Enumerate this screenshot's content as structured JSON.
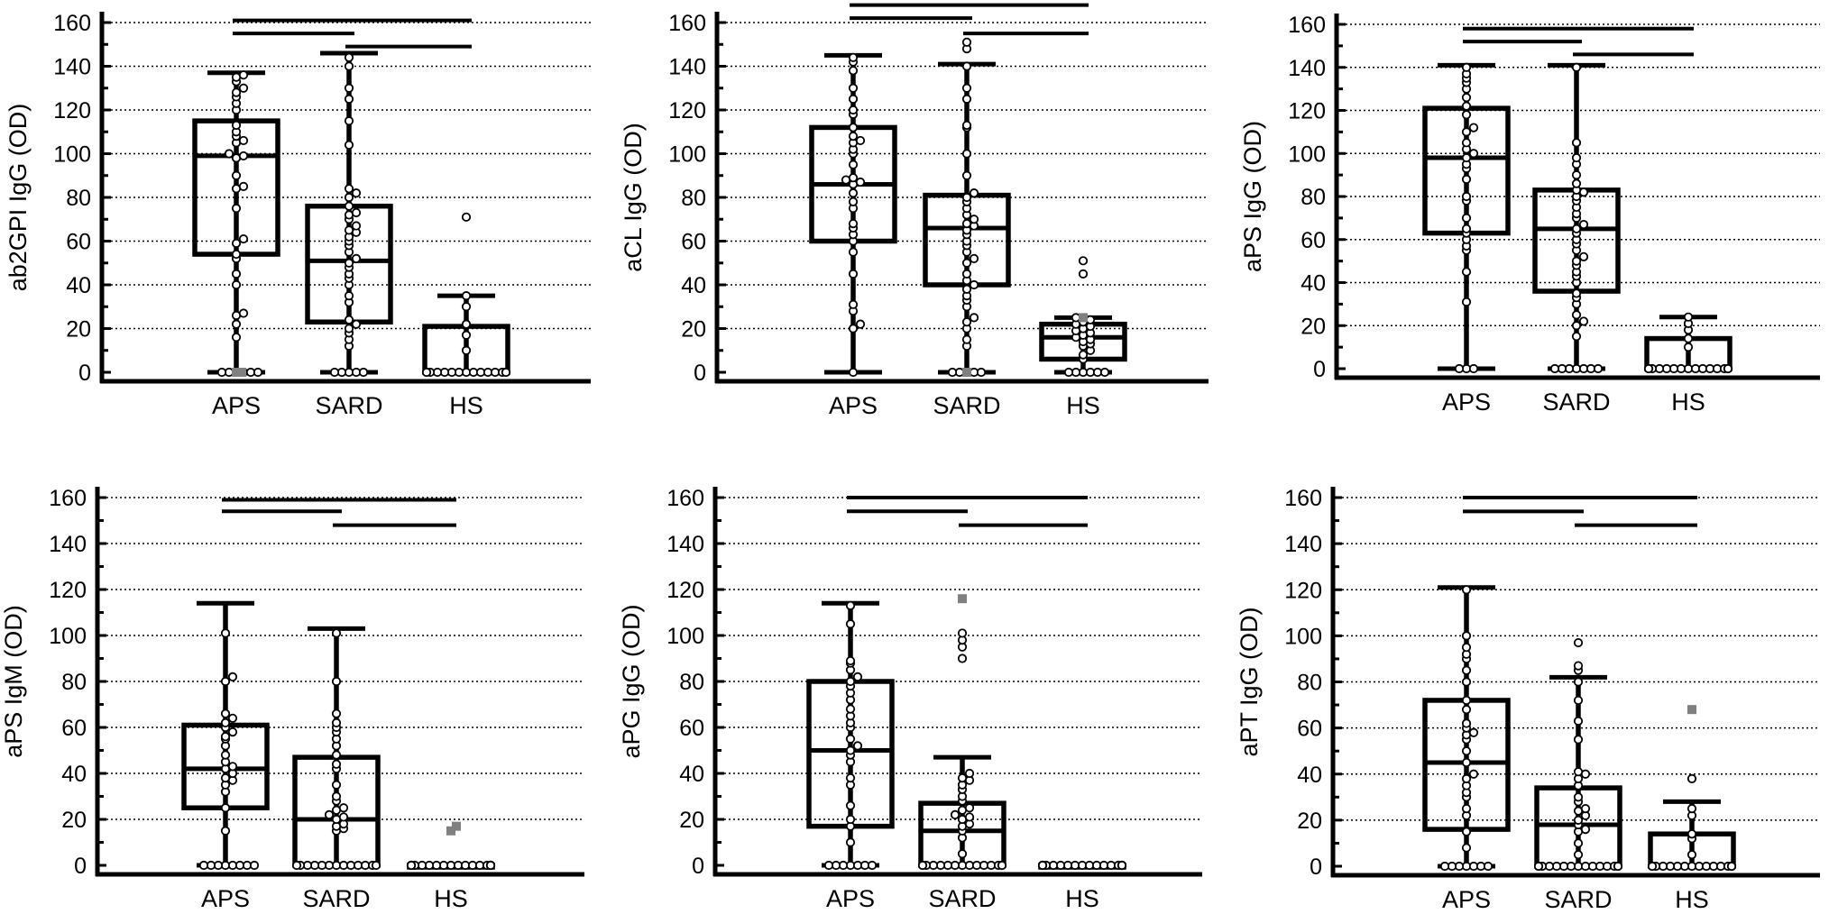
{
  "colors": {
    "ink": "#000000",
    "grid": "#000000",
    "outlier": "#808080",
    "dot_fill": "#ffffff"
  },
  "chart_data": [
    {
      "type": "box",
      "ylabel": "ab2GPI IgG (OD)",
      "categories": [
        "APS",
        "SARD",
        "HS"
      ],
      "ylim": [
        0,
        160
      ],
      "yticks": [
        "0",
        "20",
        "40",
        "60",
        "80",
        "100",
        "120",
        "140",
        "160"
      ],
      "grid": true,
      "boxes": [
        {
          "min": 0,
          "q1": 54,
          "median": 99,
          "q3": 115,
          "max": 137
        },
        {
          "min": 0,
          "q1": 23,
          "median": 51,
          "q3": 76,
          "max": 146
        },
        {
          "min": 0,
          "q1": 0,
          "median": 0,
          "q3": 21,
          "max": 35
        }
      ],
      "points": [
        [
          0,
          0,
          0,
          0,
          0,
          0,
          16,
          22,
          26,
          27,
          40,
          45,
          52,
          54,
          59,
          61,
          75,
          84,
          85,
          90,
          98,
          99,
          100,
          105,
          106,
          108,
          110,
          113,
          120,
          123,
          126,
          128,
          130,
          133,
          135,
          136
        ],
        [
          0,
          0,
          0,
          0,
          0,
          12,
          15,
          18,
          20,
          22,
          24,
          32,
          35,
          40,
          43,
          45,
          48,
          50,
          52,
          55,
          58,
          60,
          62,
          64,
          65,
          67,
          70,
          72,
          73,
          76,
          80,
          82,
          84,
          104,
          115,
          125,
          130,
          140,
          144
        ],
        [
          0,
          0,
          0,
          0,
          0,
          0,
          0,
          0,
          0,
          0,
          0,
          0,
          0,
          0,
          0,
          10,
          17,
          22,
          30,
          35,
          71
        ]
      ],
      "outliers": [
        [
          0,
          0
        ],
        [],
        []
      ],
      "significance": [
        {
          "from": "APS",
          "to": "HS",
          "y": 161
        },
        {
          "from": "APS",
          "to": "SARD",
          "y": 155
        },
        {
          "from": "SARD",
          "to": "HS",
          "y": 149
        }
      ]
    },
    {
      "type": "box",
      "ylabel": "aCL IgG (OD)",
      "categories": [
        "APS",
        "SARD",
        "HS"
      ],
      "ylim": [
        0,
        160
      ],
      "yticks": [
        "0",
        "20",
        "40",
        "60",
        "80",
        "100",
        "120",
        "140",
        "160"
      ],
      "grid": true,
      "boxes": [
        {
          "min": 0,
          "q1": 60,
          "median": 86,
          "q3": 112,
          "max": 145
        },
        {
          "min": 0,
          "q1": 40,
          "median": 66,
          "q3": 81,
          "max": 141
        },
        {
          "min": 0,
          "q1": 6,
          "median": 16,
          "q3": 22,
          "max": 25
        }
      ],
      "points": [
        [
          0,
          20,
          22,
          28,
          31,
          45,
          55,
          60,
          63,
          66,
          68,
          75,
          78,
          82,
          86,
          87,
          88,
          89,
          95,
          100,
          102,
          105,
          106,
          108,
          112,
          118,
          120,
          125,
          130,
          138,
          142,
          144
        ],
        [
          0,
          0,
          0,
          0,
          0,
          12,
          15,
          20,
          23,
          25,
          30,
          33,
          35,
          38,
          40,
          42,
          45,
          50,
          52,
          55,
          58,
          60,
          63,
          65,
          67,
          68,
          70,
          72,
          75,
          78,
          80,
          82,
          90,
          100,
          112,
          113,
          125,
          130,
          140,
          148,
          151
        ],
        [
          0,
          0,
          0,
          0,
          0,
          0,
          6,
          8,
          10,
          12,
          13,
          14,
          15,
          16,
          17,
          18,
          19,
          20,
          21,
          22,
          23,
          24,
          25,
          45,
          51
        ]
      ],
      "outliers": [
        [],
        [
          0
        ],
        [
          25
        ]
      ],
      "significance": [
        {
          "from": "APS",
          "to": "HS",
          "y": 168
        },
        {
          "from": "APS",
          "to": "SARD",
          "y": 162
        },
        {
          "from": "SARD",
          "to": "HS",
          "y": 155
        }
      ]
    },
    {
      "type": "box",
      "ylabel": "aPS IgG (OD)",
      "categories": [
        "APS",
        "SARD",
        "HS"
      ],
      "ylim": [
        0,
        160
      ],
      "yticks": [
        "0",
        "20",
        "40",
        "60",
        "80",
        "100",
        "120",
        "140",
        "160"
      ],
      "grid": true,
      "boxes": [
        {
          "min": 0,
          "q1": 63,
          "median": 98,
          "q3": 121,
          "max": 141
        },
        {
          "min": 0,
          "q1": 36,
          "median": 65,
          "q3": 83,
          "max": 141
        },
        {
          "min": 0,
          "q1": 0,
          "median": 0,
          "q3": 14,
          "max": 24
        }
      ],
      "points": [
        [
          0,
          0,
          0,
          31,
          45,
          55,
          57,
          60,
          63,
          65,
          70,
          78,
          80,
          88,
          93,
          95,
          98,
          100,
          102,
          105,
          110,
          112,
          118,
          122,
          126,
          130,
          133,
          135,
          137,
          140
        ],
        [
          0,
          0,
          0,
          0,
          0,
          0,
          0,
          15,
          20,
          22,
          25,
          30,
          33,
          35,
          40,
          43,
          45,
          48,
          50,
          52,
          55,
          58,
          60,
          63,
          65,
          67,
          70,
          72,
          75,
          78,
          80,
          82,
          83,
          86,
          90,
          95,
          98,
          105,
          140
        ],
        [
          0,
          0,
          0,
          0,
          0,
          0,
          0,
          0,
          0,
          0,
          0,
          0,
          0,
          0,
          0,
          0,
          10,
          14,
          18,
          21,
          24
        ]
      ],
      "outliers": [
        [],
        [],
        []
      ],
      "significance": [
        {
          "from": "APS",
          "to": "HS",
          "y": 158
        },
        {
          "from": "APS",
          "to": "SARD",
          "y": 152
        },
        {
          "from": "SARD",
          "to": "HS",
          "y": 146
        }
      ]
    },
    {
      "type": "box",
      "ylabel": "aPS IgM (OD)",
      "categories": [
        "APS",
        "SARD",
        "HS"
      ],
      "ylim": [
        0,
        160
      ],
      "yticks": [
        "0",
        "20",
        "40",
        "60",
        "80",
        "100",
        "120",
        "140",
        "160"
      ],
      "grid": true,
      "boxes": [
        {
          "min": 0,
          "q1": 25,
          "median": 42,
          "q3": 61,
          "max": 114
        },
        {
          "min": 0,
          "q1": 0,
          "median": 20,
          "q3": 47,
          "max": 103
        },
        {
          "min": 0,
          "q1": 0,
          "median": 0,
          "q3": 0,
          "max": 0
        }
      ],
      "points": [
        [
          0,
          0,
          0,
          0,
          0,
          0,
          0,
          0,
          15,
          25,
          32,
          35,
          37,
          38,
          40,
          42,
          43,
          45,
          48,
          52,
          55,
          56,
          58,
          60,
          62,
          64,
          66,
          80,
          82,
          101
        ],
        [
          0,
          0,
          0,
          0,
          0,
          0,
          0,
          0,
          0,
          0,
          0,
          0,
          0,
          15,
          16,
          17,
          18,
          20,
          21,
          22,
          24,
          25,
          28,
          30,
          35,
          42,
          44,
          48,
          52,
          55,
          58,
          60,
          62,
          66,
          80,
          101
        ],
        [
          0,
          0,
          0,
          0,
          0,
          0,
          0,
          0,
          0,
          0,
          0,
          0,
          0,
          0,
          0,
          0,
          0,
          0,
          0,
          0
        ]
      ],
      "outliers": [
        [],
        [],
        [
          15,
          17
        ]
      ],
      "significance": [
        {
          "from": "APS",
          "to": "HS",
          "y": 159
        },
        {
          "from": "APS",
          "to": "SARD",
          "y": 154
        },
        {
          "from": "SARD",
          "to": "HS",
          "y": 148
        }
      ]
    },
    {
      "type": "box",
      "ylabel": "aPG IgG (OD)",
      "categories": [
        "APS",
        "SARD",
        "HS"
      ],
      "ylim": [
        0,
        160
      ],
      "yticks": [
        "0",
        "20",
        "40",
        "60",
        "80",
        "100",
        "120",
        "140",
        "160"
      ],
      "grid": true,
      "boxes": [
        {
          "min": 0,
          "q1": 17,
          "median": 50,
          "q3": 80,
          "max": 114
        },
        {
          "min": 0,
          "q1": 0,
          "median": 15,
          "q3": 27,
          "max": 47
        },
        {
          "min": 0,
          "q1": 0,
          "median": 0,
          "q3": 0,
          "max": 0
        }
      ],
      "points": [
        [
          0,
          0,
          0,
          0,
          0,
          0,
          0,
          10,
          17,
          20,
          26,
          35,
          38,
          45,
          48,
          50,
          52,
          55,
          60,
          62,
          65,
          68,
          72,
          75,
          78,
          80,
          82,
          85,
          88,
          89,
          105,
          113
        ],
        [
          0,
          0,
          0,
          0,
          0,
          0,
          0,
          0,
          0,
          0,
          0,
          0,
          0,
          0,
          0,
          5,
          12,
          15,
          17,
          18,
          20,
          21,
          22,
          24,
          25,
          28,
          30,
          33,
          35,
          37,
          38,
          40,
          90,
          95,
          98,
          101
        ],
        [
          0,
          0,
          0,
          0,
          0,
          0,
          0,
          0,
          0,
          0,
          0,
          0,
          0,
          0,
          0,
          0,
          0,
          0,
          0,
          0
        ]
      ],
      "outliers": [
        [],
        [
          116
        ],
        []
      ],
      "significance": [
        {
          "from": "APS",
          "to": "HS",
          "y": 160
        },
        {
          "from": "APS",
          "to": "SARD",
          "y": 154
        },
        {
          "from": "SARD",
          "to": "HS",
          "y": 148
        }
      ]
    },
    {
      "type": "box",
      "ylabel": "aPT IgG (OD)",
      "categories": [
        "APS",
        "SARD",
        "HS"
      ],
      "ylim": [
        0,
        160
      ],
      "yticks": [
        "0",
        "20",
        "40",
        "60",
        "80",
        "100",
        "120",
        "140",
        "160"
      ],
      "grid": true,
      "boxes": [
        {
          "min": 0,
          "q1": 16,
          "median": 45,
          "q3": 72,
          "max": 121
        },
        {
          "min": 0,
          "q1": 0,
          "median": 18,
          "q3": 34,
          "max": 82
        },
        {
          "min": 0,
          "q1": 0,
          "median": 0,
          "q3": 14,
          "max": 28
        }
      ],
      "points": [
        [
          0,
          0,
          0,
          0,
          0,
          0,
          0,
          8,
          15,
          22,
          25,
          30,
          32,
          35,
          38,
          40,
          45,
          50,
          55,
          57,
          58,
          60,
          62,
          68,
          72,
          80,
          85,
          90,
          92,
          95,
          100,
          120
        ],
        [
          0,
          0,
          0,
          0,
          0,
          0,
          0,
          0,
          0,
          0,
          0,
          0,
          0,
          0,
          0,
          5,
          10,
          15,
          16,
          18,
          20,
          22,
          24,
          25,
          28,
          30,
          35,
          38,
          40,
          41,
          55,
          63,
          72,
          80,
          85,
          87,
          97
        ],
        [
          0,
          0,
          0,
          0,
          0,
          0,
          0,
          0,
          0,
          0,
          0,
          0,
          0,
          0,
          0,
          0,
          5,
          12,
          14,
          22,
          25,
          38
        ]
      ],
      "outliers": [
        [],
        [],
        [
          68
        ]
      ],
      "significance": [
        {
          "from": "APS",
          "to": "HS",
          "y": 160
        },
        {
          "from": "APS",
          "to": "SARD",
          "y": 154
        },
        {
          "from": "SARD",
          "to": "HS",
          "y": 148
        }
      ]
    }
  ]
}
